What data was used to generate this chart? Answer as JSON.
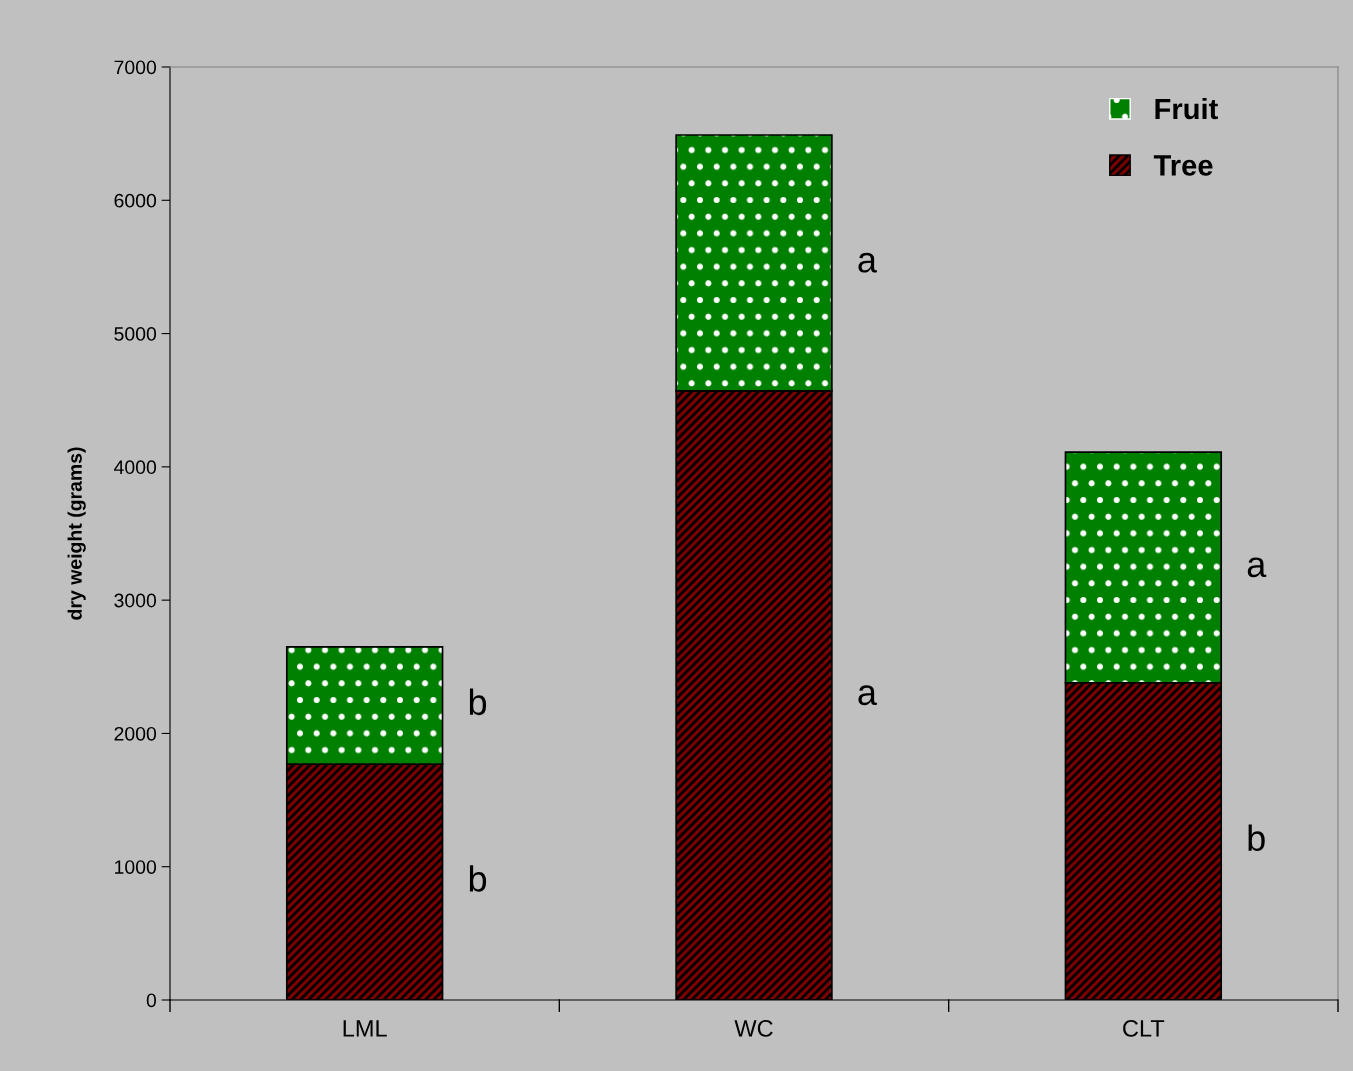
{
  "chart_data": {
    "type": "bar",
    "stacked": true,
    "ylabel": "dry weight (grams)",
    "categories": [
      "LML",
      "WC",
      "CLT"
    ],
    "series": [
      {
        "name": "Tree",
        "color": "#800000",
        "values": [
          1770,
          4570,
          2380
        ]
      },
      {
        "name": "Fruit",
        "color": "#008000",
        "values": [
          880,
          1920,
          1730
        ]
      }
    ],
    "ylim": [
      0,
      7000
    ],
    "yticks": [
      0,
      1000,
      2000,
      3000,
      4000,
      5000,
      6000,
      7000
    ],
    "grid": false,
    "legend": "top right",
    "annotations": [
      "b",
      "b",
      "a",
      "a",
      "b",
      "a"
    ]
  }
}
